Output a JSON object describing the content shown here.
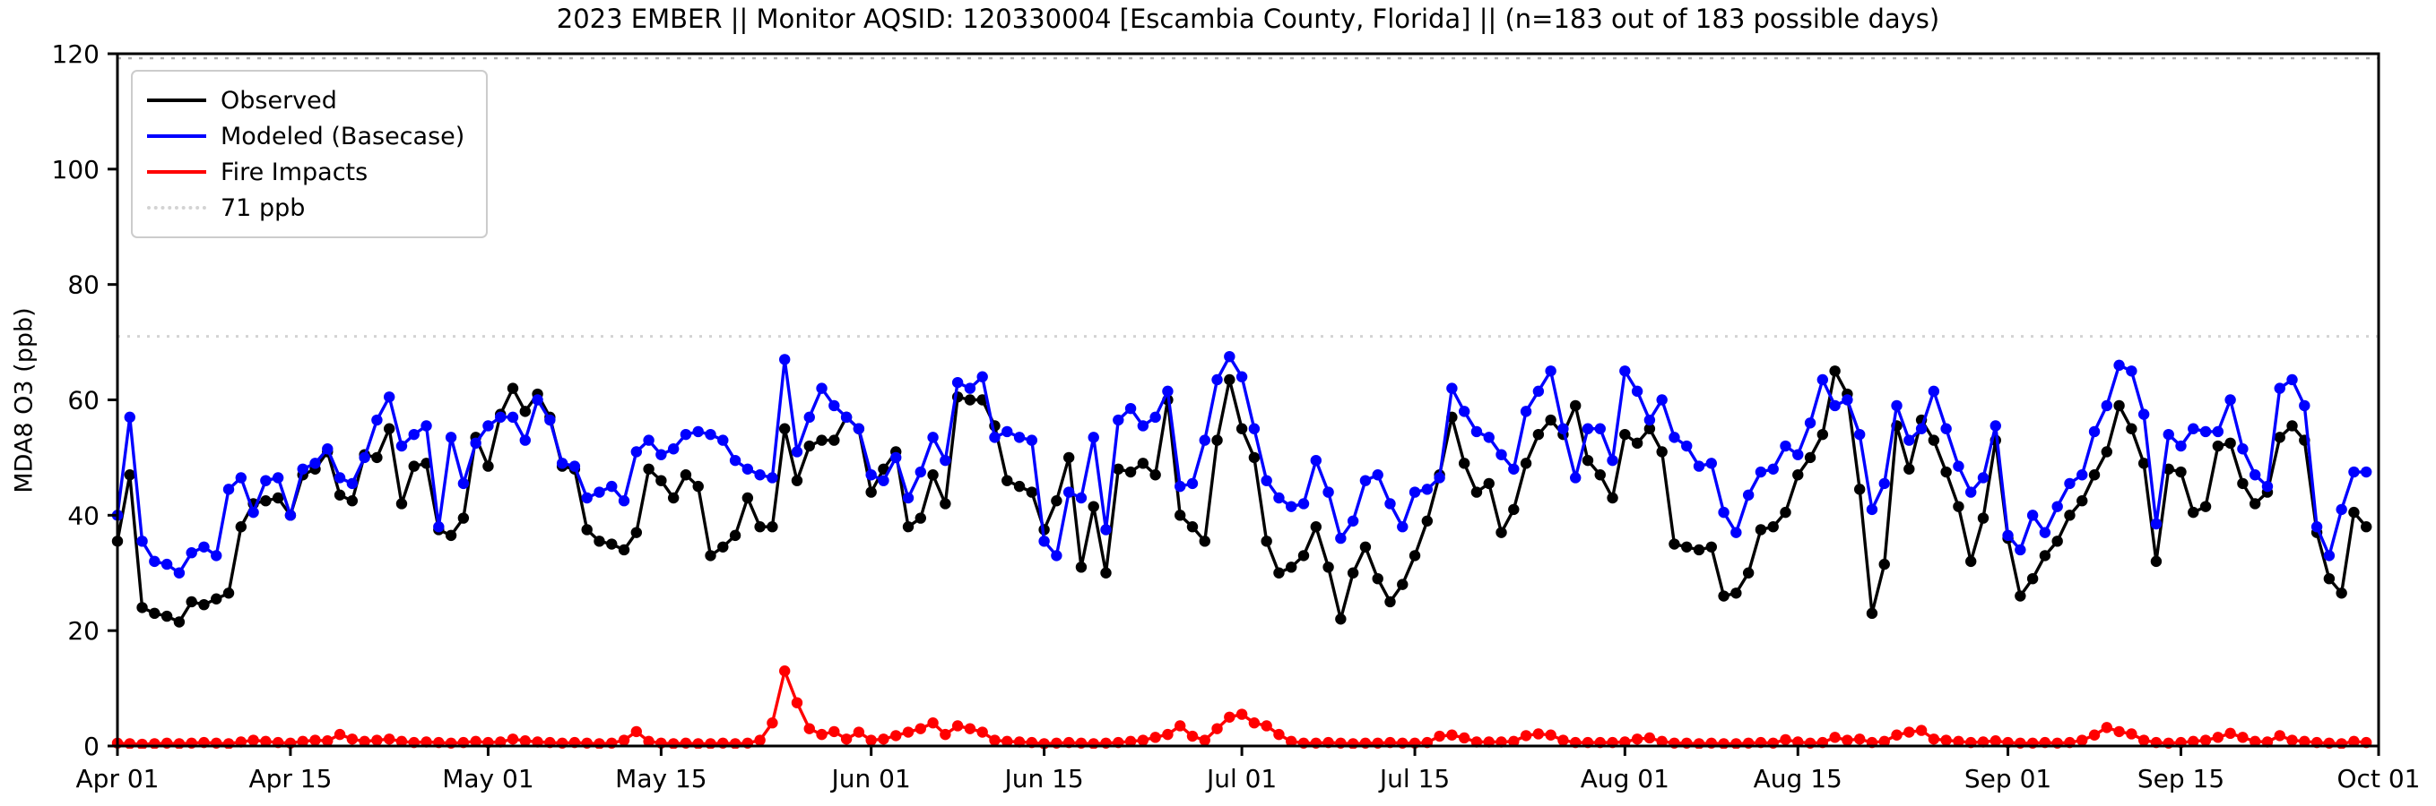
{
  "chart_data": {
    "type": "line",
    "title": "2023 EMBER || Monitor AQSID: 120330004 [Escambia County, Florida] || (n=183 out of 183 possible days)",
    "ylabel": "MDA8 O3 (ppb)",
    "ylim": [
      0,
      120
    ],
    "yticks": [
      0,
      20,
      40,
      60,
      80,
      100,
      120
    ],
    "n_days": 183,
    "x_tick_days": [
      0,
      14,
      30,
      44,
      61,
      75,
      91,
      105,
      122,
      136,
      153,
      167,
      183
    ],
    "x_tick_labels": [
      "Apr 01",
      "Apr 15",
      "May 01",
      "May 15",
      "Jun 01",
      "Jun 15",
      "Jul 01",
      "Jul 15",
      "Aug 01",
      "Aug 15",
      "Sep 01",
      "Sep 15",
      "Oct 01"
    ],
    "grid": false,
    "legend_position": "upper-left",
    "threshold": {
      "value": 71,
      "label": "71 ppb",
      "color": "#d3d3d3"
    },
    "upper_threshold": {
      "value": 120,
      "color": "#b0b0b0"
    },
    "axis_color": "#000000",
    "series": [
      {
        "name": "Observed",
        "color": "#000000",
        "values": [
          35.5,
          47,
          24,
          23,
          22.5,
          21.5,
          25,
          24.5,
          25.5,
          26.5,
          38,
          42,
          42.5,
          43,
          40,
          47,
          48,
          51,
          43.5,
          42.5,
          50.5,
          50,
          55,
          42,
          48.5,
          49,
          37.5,
          36.5,
          39.5,
          53.5,
          48.5,
          57.5,
          62,
          58,
          61,
          57,
          48.5,
          48,
          37.5,
          35.5,
          35,
          34,
          37,
          48,
          46,
          43,
          47,
          45,
          33,
          34.5,
          36.5,
          43,
          38,
          38,
          55,
          46,
          52,
          53,
          53,
          57,
          55,
          44,
          48,
          51,
          38,
          39.5,
          47,
          42,
          60.5,
          60,
          60,
          55.5,
          46,
          45,
          44,
          37.5,
          42.5,
          50,
          31,
          41.5,
          30,
          48,
          47.5,
          49,
          47,
          60,
          40,
          38,
          35.5,
          53,
          63.5,
          55,
          50,
          35.5,
          30,
          31,
          33,
          38,
          31,
          22,
          30,
          34.5,
          29,
          25,
          28,
          33,
          39,
          47,
          57,
          49,
          44,
          45.5,
          37,
          41,
          49,
          54,
          56.5,
          54,
          59,
          49.5,
          47,
          43,
          54,
          52.5,
          55,
          51,
          35,
          34.5,
          34,
          34.5,
          26,
          26.5,
          30,
          37.5,
          38,
          40.5,
          47,
          50,
          54,
          65,
          61,
          44.5,
          23,
          31.5,
          55.5,
          48,
          56.5,
          53,
          47.5,
          41.5,
          32,
          39.5,
          53,
          36,
          26,
          29,
          33,
          35.5,
          40,
          42.5,
          47,
          51,
          59,
          55,
          49,
          32,
          48,
          47.5,
          40.5,
          41.5,
          52,
          52.5,
          45.5,
          42,
          44,
          53.5,
          55.5,
          53,
          37,
          29,
          26.5,
          40.5,
          38
        ]
      },
      {
        "name": "Modeled (Basecase)",
        "color": "#0000ff",
        "values": [
          40,
          57,
          35.5,
          32,
          31.5,
          30,
          33.5,
          34.5,
          33,
          44.5,
          46.5,
          40.5,
          46,
          46.5,
          40,
          48,
          49,
          51.5,
          46.5,
          45.5,
          50,
          56.5,
          60.5,
          52,
          54,
          55.5,
          38,
          53.5,
          45.5,
          52.5,
          55.5,
          57,
          57,
          53,
          60,
          56.5,
          49,
          48.5,
          43,
          44,
          45,
          42.5,
          51,
          53,
          50.5,
          51.5,
          54,
          54.5,
          54,
          53,
          49.5,
          48,
          47,
          46.5,
          67,
          51,
          57,
          62,
          59,
          57,
          55,
          47,
          46,
          50,
          43,
          47.5,
          53.5,
          49.5,
          63,
          62,
          64,
          53.5,
          54.5,
          53.5,
          53,
          35.5,
          33,
          44,
          43,
          53.5,
          37.5,
          56.5,
          58.5,
          55.5,
          57,
          61.5,
          45,
          45.5,
          53,
          63.5,
          67.5,
          64,
          55,
          46,
          43,
          41.5,
          42,
          49.5,
          44,
          36,
          39,
          46,
          47,
          42,
          38,
          44,
          44.5,
          46.5,
          62,
          58,
          54.5,
          53.5,
          50.5,
          48,
          58,
          61.5,
          65,
          55,
          46.5,
          55,
          55,
          49.5,
          65,
          61.5,
          56.5,
          60,
          53.5,
          52,
          48.5,
          49,
          40.5,
          37,
          43.5,
          47.5,
          48,
          52,
          50.5,
          56,
          63.5,
          59,
          60,
          54,
          41,
          45.5,
          59,
          53,
          55,
          61.5,
          55,
          48.5,
          44,
          46.5,
          55.5,
          36.5,
          34,
          40,
          37,
          41.5,
          45.5,
          47,
          54.5,
          59,
          66,
          65,
          57.5,
          38.5,
          54,
          52,
          55,
          54.5,
          54.5,
          60,
          51.5,
          47,
          45,
          62,
          63.5,
          59,
          38,
          33,
          41,
          47.5,
          47.5
        ]
      },
      {
        "name": "Fire Impacts",
        "color": "#ff0000",
        "values": [
          0.5,
          0.4,
          0.3,
          0.4,
          0.5,
          0.4,
          0.5,
          0.6,
          0.5,
          0.4,
          0.7,
          1,
          0.8,
          0.6,
          0.5,
          0.8,
          1,
          0.9,
          2,
          1.2,
          0.8,
          1,
          1.2,
          0.8,
          0.6,
          0.7,
          0.6,
          0.5,
          0.6,
          0.8,
          0.6,
          0.7,
          1.2,
          0.9,
          0.7,
          0.6,
          0.5,
          0.6,
          0.5,
          0.4,
          0.5,
          1,
          2.5,
          0.8,
          0.5,
          0.4,
          0.5,
          0.4,
          0.4,
          0.5,
          0.4,
          0.5,
          1,
          4,
          13,
          7.5,
          3,
          2,
          2.5,
          1.2,
          2.4,
          1,
          1.2,
          1.8,
          2.4,
          3,
          4,
          2,
          3.5,
          3,
          2.4,
          1,
          0.8,
          0.7,
          0.6,
          0.4,
          0.5,
          0.6,
          0.5,
          0.4,
          0.5,
          0.6,
          0.8,
          1,
          1.5,
          2,
          3.5,
          1.7,
          1,
          3,
          5,
          5.5,
          4,
          3.5,
          2,
          0.8,
          0.5,
          0.5,
          0.6,
          0.5,
          0.4,
          0.5,
          0.5,
          0.6,
          0.5,
          0.5,
          0.6,
          1.7,
          1.9,
          1.4,
          0.7,
          0.7,
          0.7,
          0.8,
          1.8,
          2.1,
          1.9,
          1,
          0.6,
          0.6,
          0.6,
          0.6,
          0.7,
          1.2,
          1.4,
          0.8,
          0.5,
          0.5,
          0.4,
          0.5,
          0.4,
          0.4,
          0.5,
          0.6,
          0.5,
          1.1,
          0.7,
          0.5,
          0.6,
          1.5,
          1,
          1.2,
          0.6,
          0.8,
          1.9,
          2.4,
          2.7,
          1.2,
          1,
          0.8,
          0.6,
          0.7,
          0.9,
          0.6,
          0.5,
          0.5,
          0.6,
          0.5,
          0.6,
          1,
          1.9,
          3.2,
          2.5,
          2.1,
          1,
          0.6,
          0.5,
          0.6,
          0.8,
          1,
          1.5,
          2.2,
          1.5,
          0.8,
          0.7,
          1.8,
          1,
          0.8,
          0.6,
          0.5,
          0.4,
          0.8,
          0.6
        ]
      }
    ],
    "legend_items": [
      {
        "label": "Observed",
        "color": "#000000",
        "style": "solid"
      },
      {
        "label": "Modeled (Basecase)",
        "color": "#0000ff",
        "style": "solid"
      },
      {
        "label": "Fire Impacts",
        "color": "#ff0000",
        "style": "solid"
      },
      {
        "label": "71 ppb",
        "color": "#d3d3d3",
        "style": "dotted"
      }
    ]
  }
}
